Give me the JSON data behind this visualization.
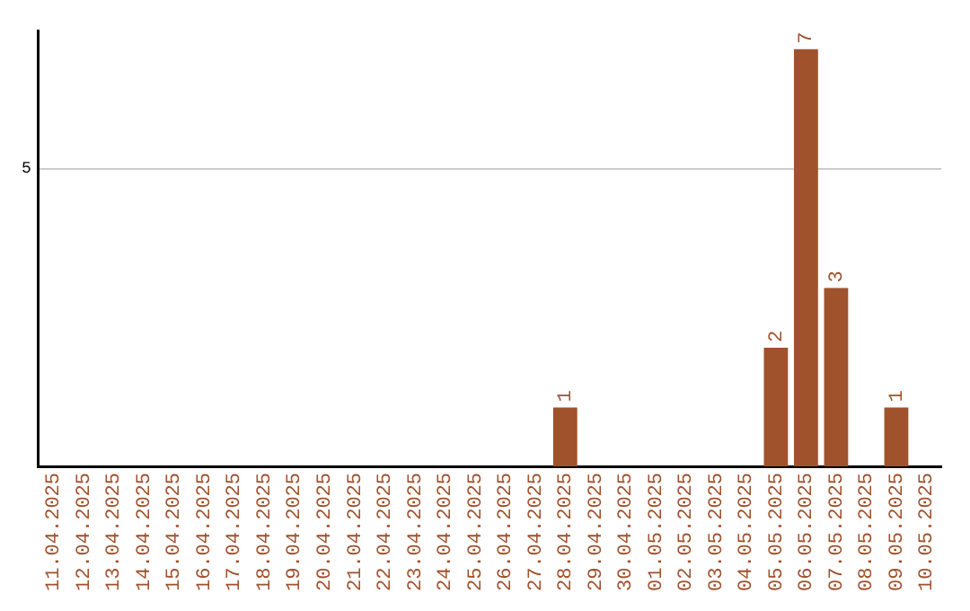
{
  "chart_data": {
    "type": "bar",
    "categories": [
      "11.04.2025",
      "12.04.2025",
      "13.04.2025",
      "14.04.2025",
      "15.04.2025",
      "16.04.2025",
      "17.04.2025",
      "18.04.2025",
      "19.04.2025",
      "20.04.2025",
      "21.04.2025",
      "22.04.2025",
      "23.04.2025",
      "24.04.2025",
      "25.04.2025",
      "26.04.2025",
      "27.04.2025",
      "28.04.2025",
      "29.04.2025",
      "30.04.2025",
      "01.05.2025",
      "02.05.2025",
      "03.05.2025",
      "04.05.2025",
      "05.05.2025",
      "06.05.2025",
      "07.05.2025",
      "08.05.2025",
      "09.05.2025",
      "10.05.2025"
    ],
    "values": [
      null,
      null,
      null,
      null,
      null,
      null,
      null,
      null,
      null,
      null,
      null,
      null,
      null,
      null,
      null,
      null,
      null,
      1,
      null,
      null,
      null,
      null,
      null,
      null,
      2,
      7,
      3,
      null,
      1,
      null
    ],
    "color": "#a0522d",
    "ylim": [
      0,
      7.3
    ],
    "yticks": [
      {
        "value": 0,
        "label": null
      },
      5
    ],
    "grid": "y",
    "data_labels": true
  }
}
